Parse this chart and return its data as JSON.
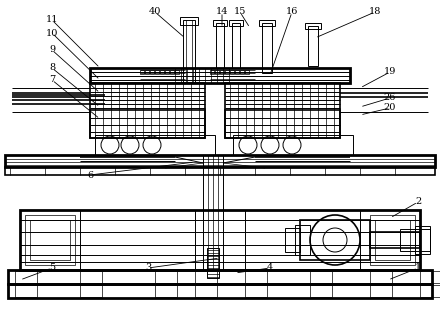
{
  "bg_color": "#ffffff",
  "figsize": [
    4.4,
    3.11
  ],
  "dpi": 100,
  "labels_info": [
    [
      "11",
      52,
      20,
      100,
      68
    ],
    [
      "10",
      52,
      33,
      100,
      80
    ],
    [
      "9",
      52,
      50,
      100,
      93
    ],
    [
      "8",
      52,
      68,
      100,
      107
    ],
    [
      "7",
      52,
      80,
      100,
      119
    ],
    [
      "40",
      155,
      12,
      185,
      38
    ],
    [
      "14",
      222,
      12,
      222,
      28
    ],
    [
      "15",
      240,
      12,
      250,
      28
    ],
    [
      "16",
      292,
      12,
      270,
      75
    ],
    [
      "18",
      375,
      12,
      315,
      38
    ],
    [
      "19",
      390,
      72,
      360,
      88
    ],
    [
      "26",
      390,
      98,
      360,
      107
    ],
    [
      "20",
      390,
      108,
      360,
      115
    ],
    [
      "6",
      90,
      175,
      195,
      162
    ],
    [
      "2",
      418,
      202,
      390,
      218
    ],
    [
      "1",
      418,
      268,
      388,
      280
    ],
    [
      "4",
      270,
      268,
      235,
      273
    ],
    [
      "3",
      148,
      268,
      220,
      258
    ],
    [
      "5",
      52,
      268,
      20,
      280
    ]
  ]
}
